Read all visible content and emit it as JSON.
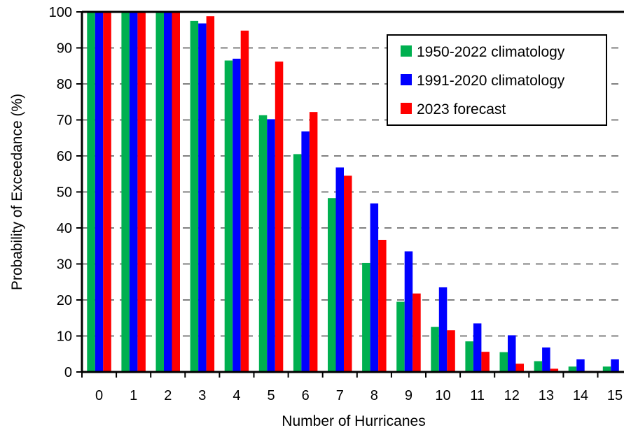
{
  "chart_data": {
    "type": "bar",
    "title": "",
    "xlabel": "Number of Hurricanes",
    "ylabel": "Probability of Exceedance (%)",
    "categories": [
      "0",
      "1",
      "2",
      "3",
      "4",
      "5",
      "6",
      "7",
      "8",
      "9",
      "10",
      "11",
      "12",
      "13",
      "14",
      "15"
    ],
    "ylim": [
      0,
      100
    ],
    "yticks": [
      "0",
      "10",
      "20",
      "30",
      "40",
      "50",
      "60",
      "70",
      "80",
      "90",
      "100"
    ],
    "grid": "horizontal dashed",
    "legend_position": "top-right",
    "series": [
      {
        "name": "1950-2022 climatology",
        "color": "#00B050",
        "values": [
          100,
          100,
          100,
          97.5,
          86.5,
          71.3,
          60.5,
          48.3,
          30.3,
          19.5,
          12.5,
          8.5,
          5.5,
          3.0,
          1.5,
          1.5
        ]
      },
      {
        "name": "1991-2020 climatology",
        "color": "#0000FF",
        "values": [
          100,
          100,
          100,
          96.8,
          87.0,
          70.2,
          66.8,
          56.8,
          46.8,
          33.5,
          23.5,
          13.5,
          10.2,
          6.8,
          3.5,
          3.5
        ]
      },
      {
        "name": "2023 forecast",
        "color": "#FF0000",
        "values": [
          100,
          100,
          99.8,
          98.8,
          94.8,
          86.2,
          72.2,
          54.5,
          36.7,
          21.8,
          11.6,
          5.6,
          2.3,
          0.9,
          0.3,
          0.1
        ]
      }
    ]
  }
}
